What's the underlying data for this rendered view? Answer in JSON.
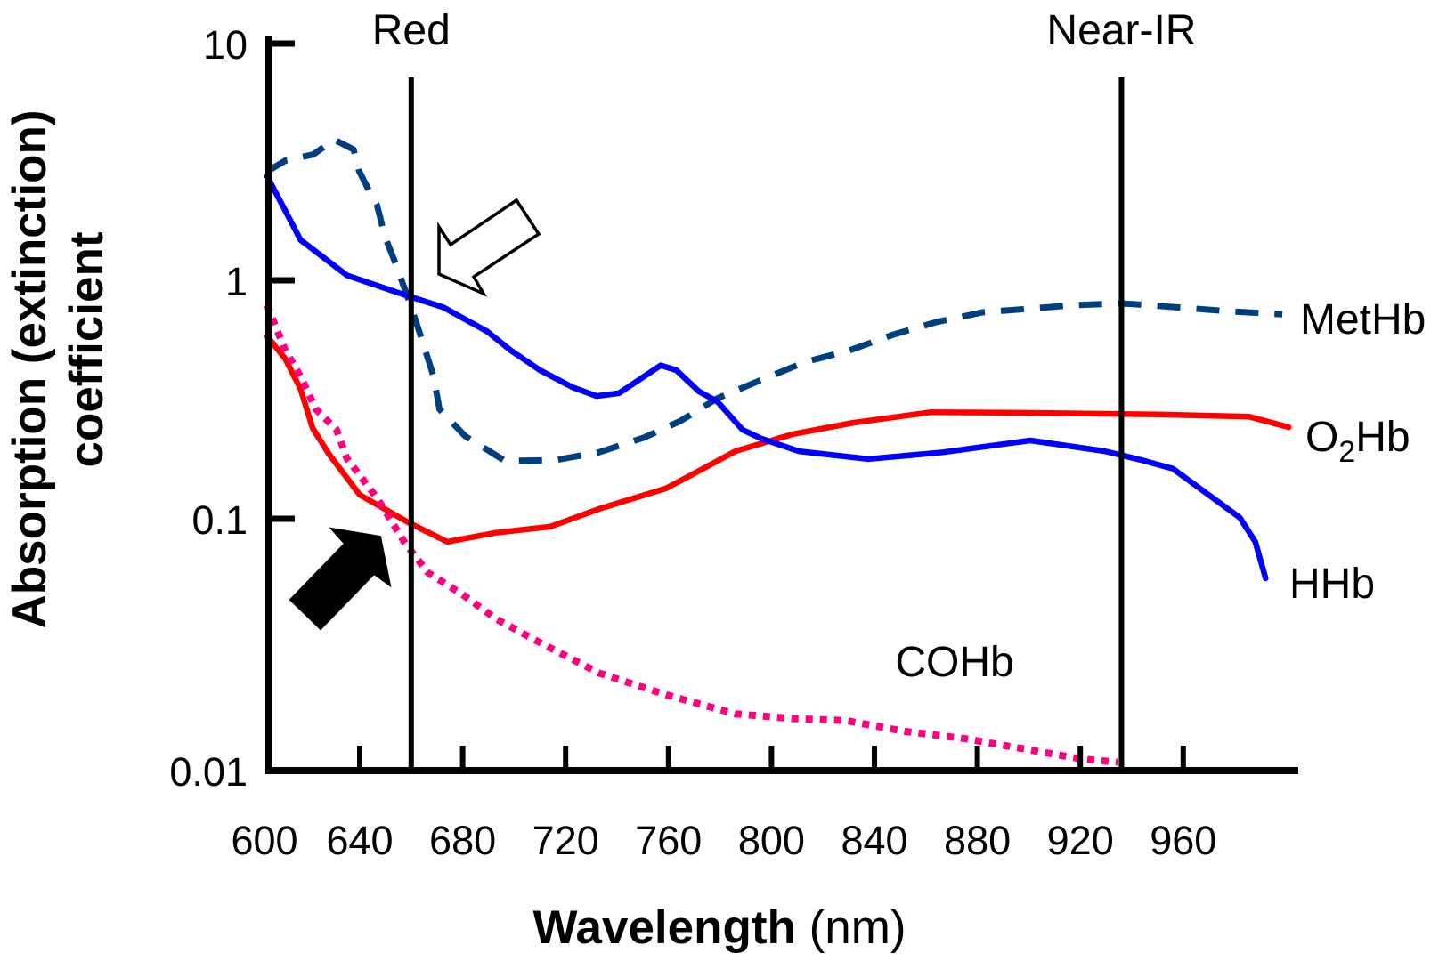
{
  "chart_data": {
    "type": "line",
    "title": "",
    "xlabel": {
      "bold": "Wavelength",
      "normal": " (nm)"
    },
    "ylabel": [
      "Absorption (extinction)",
      "coefficient"
    ],
    "x_scale": "linear",
    "y_scale": "log",
    "xlim": [
      600,
      1005
    ],
    "ylim": [
      0.01,
      10
    ],
    "x_ticks": [
      600,
      640,
      680,
      720,
      760,
      800,
      840,
      880,
      920,
      960
    ],
    "x_tick_labels": [
      "600",
      "640",
      "680",
      "720",
      "760",
      "800",
      "840",
      "880",
      "920",
      "960"
    ],
    "y_ticks": [
      10,
      1,
      0.1,
      0.01
    ],
    "y_tick_labels": [
      "10",
      "1",
      "0.1",
      "0.01"
    ],
    "grid": false,
    "legend": "inline-right",
    "reference_lines": [
      {
        "name": "Red",
        "label": "Red",
        "x": 660
      },
      {
        "name": "Near-IR",
        "label": "Near-IR",
        "x": 936
      }
    ],
    "series": [
      {
        "name": "MetHb",
        "label": "MetHb",
        "style": "dashed",
        "color": "#003f7f",
        "points": [
          [
            604,
            2.88
          ],
          [
            611,
            3.2
          ],
          [
            622,
            3.4
          ],
          [
            630,
            3.93
          ],
          [
            637.6,
            3.57
          ],
          [
            639.7,
            2.9
          ],
          [
            644.5,
            2.29
          ],
          [
            646.6,
            2.09
          ],
          [
            650,
            1.51
          ],
          [
            653.5,
            1.21
          ],
          [
            659,
            0.83
          ],
          [
            664,
            0.57
          ],
          [
            668.7,
            0.395
          ],
          [
            671,
            0.288
          ],
          [
            681,
            0.222
          ],
          [
            696.4,
            0.175
          ],
          [
            715.8,
            0.176
          ],
          [
            733,
            0.19
          ],
          [
            750.4,
            0.219
          ],
          [
            764.6,
            0.257
          ],
          [
            779,
            0.32
          ],
          [
            796,
            0.382
          ],
          [
            813,
            0.454
          ],
          [
            830,
            0.507
          ],
          [
            847,
            0.59
          ],
          [
            864,
            0.668
          ],
          [
            882,
            0.734
          ],
          [
            900.5,
            0.76
          ],
          [
            917.5,
            0.787
          ],
          [
            936,
            0.8
          ],
          [
            944,
            0.79
          ],
          [
            978.8,
            0.74
          ],
          [
            998.5,
            0.72
          ]
        ]
      },
      {
        "name": "O2Hb",
        "label_main": "O",
        "label_sub": "2",
        "label_tail": "Hb",
        "style": "solid",
        "color": "#ff0000",
        "points": [
          [
            604,
            0.582
          ],
          [
            611,
            0.47
          ],
          [
            617,
            0.35
          ],
          [
            621.7,
            0.24
          ],
          [
            628,
            0.187
          ],
          [
            640,
            0.126
          ],
          [
            659,
            0.0966
          ],
          [
            674,
            0.081
          ],
          [
            693,
            0.088
          ],
          [
            714,
            0.093
          ],
          [
            733,
            0.11
          ],
          [
            759,
            0.134
          ],
          [
            770,
            0.155
          ],
          [
            786,
            0.192
          ],
          [
            808,
            0.226
          ],
          [
            832,
            0.253
          ],
          [
            862,
            0.28
          ],
          [
            900.5,
            0.278
          ],
          [
            936,
            0.275
          ],
          [
            950,
            0.274
          ],
          [
            985.7,
            0.268
          ],
          [
            1001,
            0.242
          ]
        ]
      },
      {
        "name": "HHb",
        "label": "HHb",
        "style": "solid",
        "color": "#0000ff",
        "points": [
          [
            604,
            2.75
          ],
          [
            614,
            1.71
          ],
          [
            617,
            1.48
          ],
          [
            635,
            1.05
          ],
          [
            658,
            0.865
          ],
          [
            672.5,
            0.77
          ],
          [
            689.5,
            0.61
          ],
          [
            698.5,
            0.51
          ],
          [
            710,
            0.42
          ],
          [
            722.7,
            0.356
          ],
          [
            732,
            0.327
          ],
          [
            740.7,
            0.336
          ],
          [
            757,
            0.44
          ],
          [
            763,
            0.42
          ],
          [
            771.8,
            0.342
          ],
          [
            779,
            0.31
          ],
          [
            788.8,
            0.236
          ],
          [
            796,
            0.217
          ],
          [
            810.6,
            0.192
          ],
          [
            837.6,
            0.178
          ],
          [
            866.6,
            0.19
          ],
          [
            900.6,
            0.213
          ],
          [
            929.6,
            0.192
          ],
          [
            944,
            0.176
          ],
          [
            956,
            0.162
          ],
          [
            982,
            0.101
          ],
          [
            988,
            0.081
          ],
          [
            992,
            0.058
          ]
        ]
      },
      {
        "name": "COHb",
        "label": "COHb",
        "style": "dotted",
        "color": "#ff0080",
        "points": [
          [
            604,
            0.787
          ],
          [
            611,
            0.51
          ],
          [
            617,
            0.395
          ],
          [
            623,
            0.288
          ],
          [
            631,
            0.236
          ],
          [
            635,
            0.179
          ],
          [
            647,
            0.121
          ],
          [
            657.6,
            0.08
          ],
          [
            666.6,
            0.061
          ],
          [
            680,
            0.05
          ],
          [
            693,
            0.04
          ],
          [
            710.6,
            0.032
          ],
          [
            733,
            0.0244
          ],
          [
            759,
            0.02
          ],
          [
            786,
            0.0168
          ],
          [
            808,
            0.0161
          ],
          [
            829,
            0.0158
          ],
          [
            852,
            0.0143
          ],
          [
            875,
            0.0134
          ],
          [
            898,
            0.0122
          ],
          [
            921,
            0.0111
          ],
          [
            934.5,
            0.0108
          ]
        ]
      }
    ],
    "annotations": [
      {
        "name": "hollow-arrow",
        "type": "arrow-outline",
        "points_to": "Red line / HHb–MetHb crossing"
      },
      {
        "name": "filled-arrow",
        "type": "arrow-filled",
        "points_to": "Red line / O2Hb–COHb crossing"
      }
    ]
  }
}
